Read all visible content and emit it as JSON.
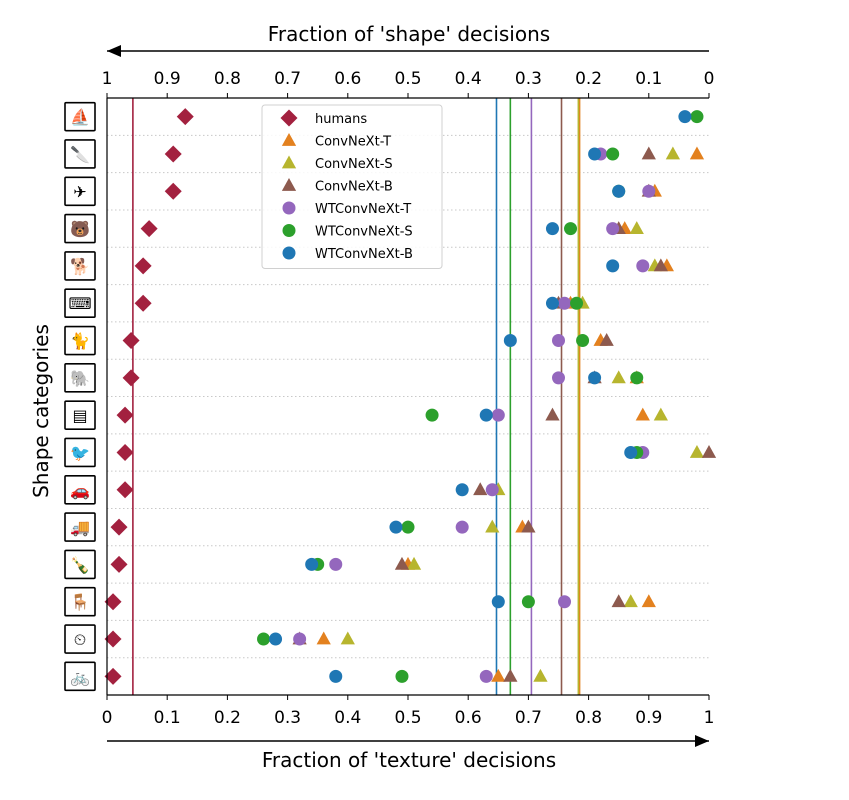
{
  "chart_data": {
    "type": "scatter",
    "title": "",
    "xlabel": "Fraction of 'texture' decisions",
    "x2label": "Fraction of 'shape' decisions",
    "ylabel": "Shape categories",
    "xlim": [
      0,
      1
    ],
    "x_ticks": [
      "0",
      "0.1",
      "0.2",
      "0.3",
      "0.4",
      "0.5",
      "0.6",
      "0.7",
      "0.8",
      "0.9",
      "1"
    ],
    "x2_ticks": [
      "1",
      "0.9",
      "0.8",
      "0.7",
      "0.6",
      "0.5",
      "0.4",
      "0.3",
      "0.2",
      "0.1",
      "0"
    ],
    "categories": [
      "boat",
      "knife",
      "airplane",
      "bear",
      "dog",
      "keyboard",
      "cat",
      "elephant",
      "oven",
      "bird",
      "car",
      "truck",
      "bottle",
      "chair",
      "clock",
      "bicycle"
    ],
    "legend_position": "top-center",
    "series": [
      {
        "name": "humans",
        "marker": "diamond",
        "color": "#a3213f",
        "mean": 0.043,
        "values": [
          0.13,
          0.11,
          0.11,
          0.07,
          0.06,
          0.06,
          0.04,
          0.04,
          0.03,
          0.03,
          0.03,
          0.02,
          0.02,
          0.01,
          0.01,
          0.01
        ]
      },
      {
        "name": "ConvNeXt-T",
        "marker": "triangle",
        "color": "#e3811f",
        "mean": 0.785,
        "values": [
          null,
          0.98,
          0.91,
          0.86,
          0.93,
          0.77,
          0.82,
          0.88,
          0.89,
          null,
          null,
          0.69,
          0.5,
          0.9,
          0.36,
          0.65
        ]
      },
      {
        "name": "ConvNeXt-S",
        "marker": "triangle",
        "color": "#b7b52e",
        "mean": 0.783,
        "values": [
          null,
          0.94,
          null,
          0.88,
          0.91,
          0.79,
          null,
          0.85,
          0.92,
          0.98,
          0.65,
          0.64,
          0.51,
          0.87,
          0.4,
          0.72
        ]
      },
      {
        "name": "ConvNeXt-B",
        "marker": "triangle",
        "color": "#8d5a4e",
        "mean": 0.755,
        "values": [
          null,
          0.9,
          0.9,
          0.85,
          0.92,
          0.75,
          0.83,
          0.81,
          0.74,
          1.0,
          0.62,
          0.7,
          0.49,
          0.85,
          0.32,
          0.67
        ]
      },
      {
        "name": "WTConvNeXt-T",
        "marker": "circle",
        "color": "#9467bd",
        "mean": 0.705,
        "values": [
          null,
          0.82,
          0.9,
          0.84,
          0.89,
          0.76,
          0.75,
          0.75,
          0.65,
          0.89,
          0.64,
          0.59,
          0.38,
          0.76,
          0.32,
          0.63
        ]
      },
      {
        "name": "WTConvNeXt-S",
        "marker": "circle",
        "color": "#2ca02c",
        "mean": 0.67,
        "values": [
          0.98,
          0.84,
          0.85,
          0.77,
          null,
          0.78,
          0.79,
          0.88,
          0.54,
          0.88,
          null,
          0.5,
          0.35,
          0.7,
          0.26,
          0.49
        ]
      },
      {
        "name": "WTConvNeXt-B",
        "marker": "circle",
        "color": "#1f77b4",
        "mean": 0.647,
        "values": [
          0.96,
          0.81,
          0.85,
          0.74,
          0.84,
          0.74,
          0.67,
          0.81,
          0.63,
          0.87,
          0.59,
          0.48,
          0.34,
          0.65,
          0.28,
          0.38
        ]
      }
    ]
  }
}
